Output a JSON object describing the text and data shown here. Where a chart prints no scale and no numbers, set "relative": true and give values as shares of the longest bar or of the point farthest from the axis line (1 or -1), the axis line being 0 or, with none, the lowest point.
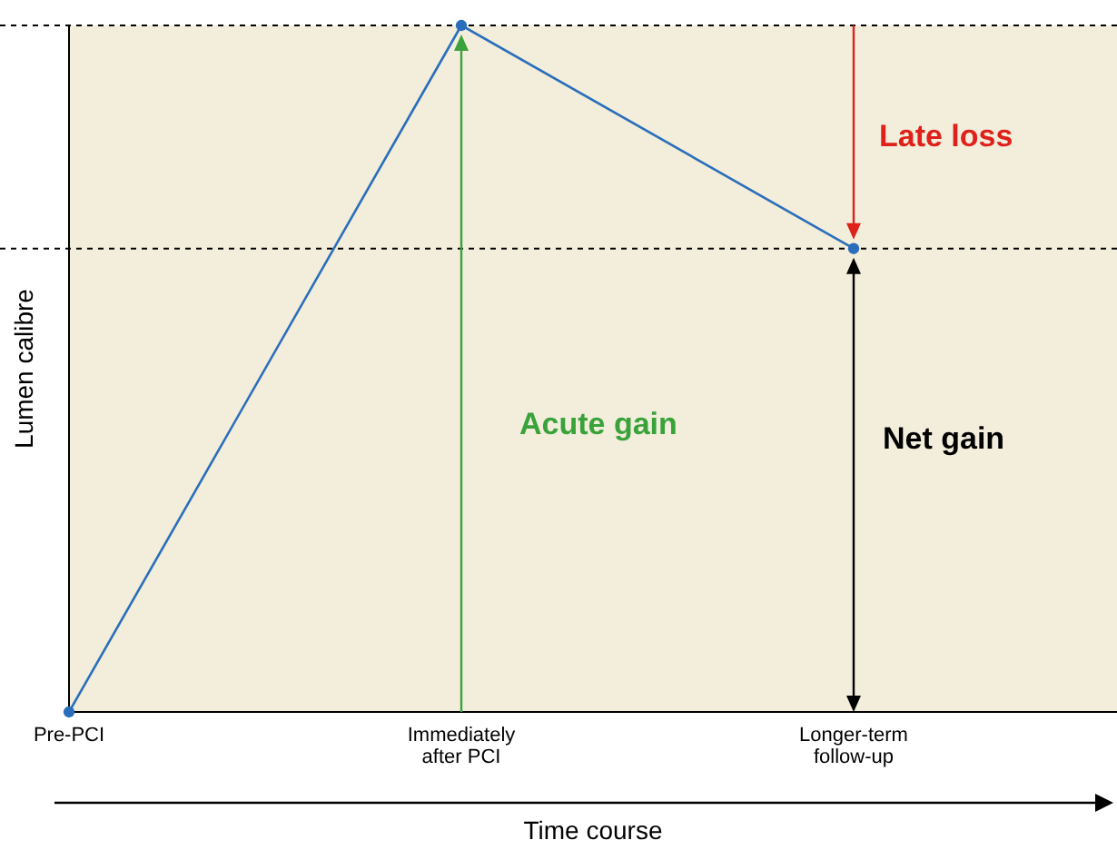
{
  "chart_data": {
    "type": "line",
    "relative": true,
    "xlabel": "Time course",
    "ylabel": "Lumen calibre",
    "categories": [
      "Pre-PCI",
      "Immediately after PCI",
      "Longer-term follow-up"
    ],
    "series": [
      {
        "color": "#2a6ebb",
        "values": [
          0,
          1,
          0.675
        ]
      }
    ],
    "marker": "circle",
    "ref_lines": [
      {
        "axis": "y",
        "value": 1,
        "line_style": "dashed",
        "color": "#000000"
      },
      {
        "axis": "y",
        "value": 0.675,
        "line_style": "dashed",
        "color": "#000000"
      }
    ],
    "annotations": [
      "Acute gain",
      "Late loss",
      "Net gain"
    ]
  }
}
